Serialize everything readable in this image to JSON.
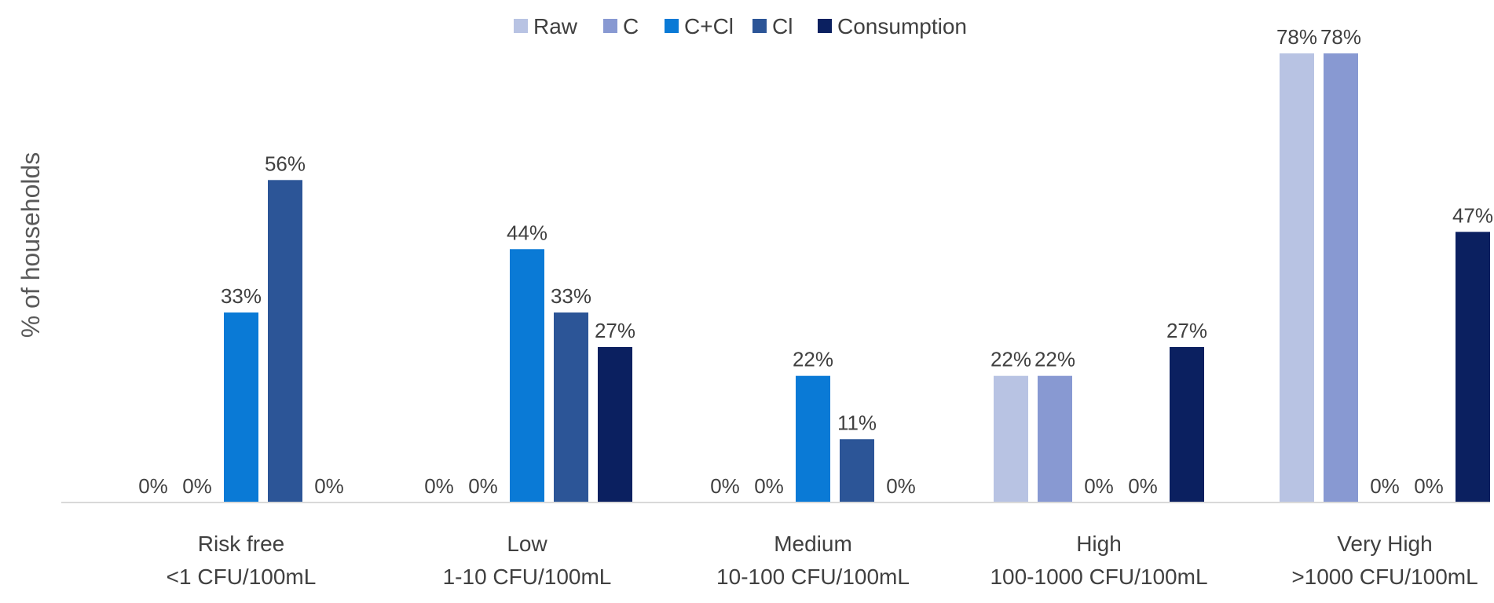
{
  "chart_data": {
    "type": "bar",
    "title": "",
    "xlabel": "",
    "ylabel": "% of households",
    "ylim": [
      0,
      78
    ],
    "grid": false,
    "legend_position": "top",
    "categories": [
      {
        "name": "Risk free",
        "range": "<1 CFU/100mL"
      },
      {
        "name": "Low",
        "range": "1-10 CFU/100mL"
      },
      {
        "name": "Medium",
        "range": "10-100 CFU/100mL"
      },
      {
        "name": "High",
        "range": "100-1000 CFU/100mL"
      },
      {
        "name": "Very High",
        "range": ">1000 CFU/100mL"
      }
    ],
    "series": [
      {
        "name": "Raw",
        "color": "#b8c3e3",
        "values": [
          0,
          0,
          0,
          22,
          78
        ]
      },
      {
        "name": "C",
        "color": "#8899d2",
        "values": [
          0,
          0,
          0,
          22,
          78
        ]
      },
      {
        "name": "C+Cl",
        "color": "#0a7ad6",
        "values": [
          33,
          44,
          22,
          0,
          0
        ]
      },
      {
        "name": "Cl",
        "color": "#2c5597",
        "values": [
          56,
          33,
          11,
          0,
          0
        ]
      },
      {
        "name": "Consumption",
        "color": "#0b2060",
        "values": [
          0,
          27,
          0,
          27,
          47
        ]
      }
    ],
    "value_suffix": "%"
  }
}
